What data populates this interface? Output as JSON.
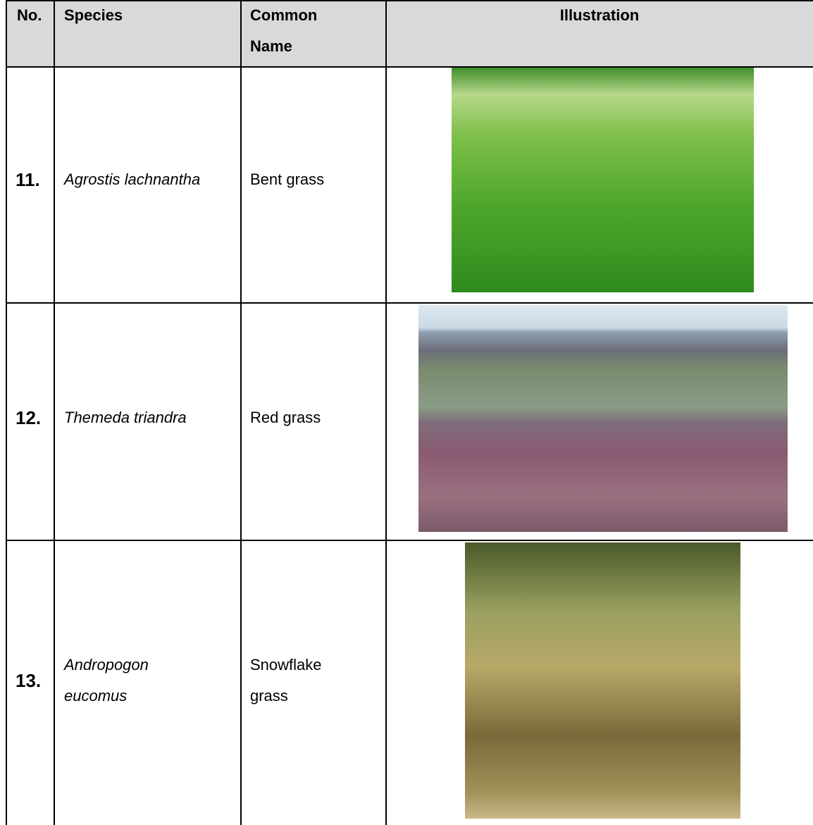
{
  "table": {
    "header": [
      "No.",
      "Species",
      "Common Name",
      "Illustration"
    ],
    "rows": [
      [
        "11.",
        "Agrostis lachnantha",
        "Bent grass"
      ],
      [
        "12.",
        "Themeda triandra",
        "Red grass"
      ],
      [
        "13.",
        "Andropogon eucomus",
        "Snowflake grass"
      ]
    ]
  }
}
